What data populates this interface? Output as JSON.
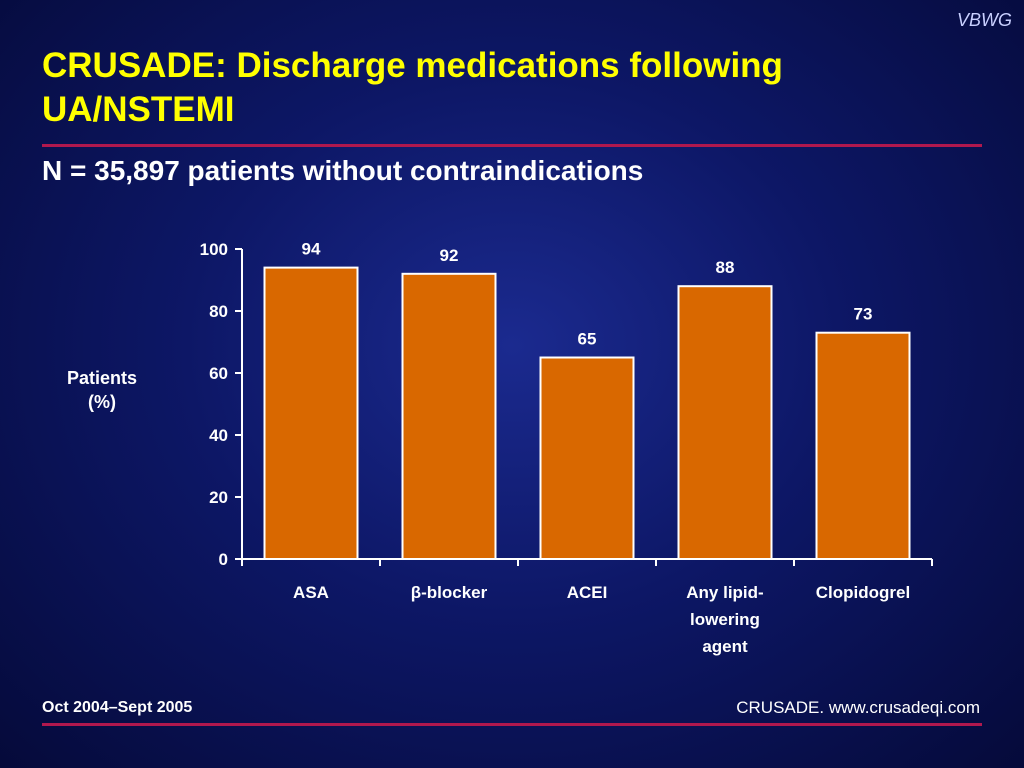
{
  "brand": "VBWG",
  "title": "CRUSADE: Discharge medications following UA/NSTEMI",
  "subtitle": "N = 35,897 patients without contraindications",
  "footer": {
    "left": "Oct 2004–Sept 2005",
    "right": "CRUSADE. www.crusadeqi.com"
  },
  "colors": {
    "bar": "#d96800",
    "background": "#0d1766",
    "title": "#ffff00",
    "rule": "#b0184e"
  },
  "chart_data": {
    "type": "bar",
    "categories": [
      "ASA",
      "β-blocker",
      "ACEI",
      "Any lipid-\nlowering\nagent",
      "Clopidogrel"
    ],
    "values": [
      94,
      92,
      65,
      88,
      73
    ],
    "data_labels": [
      "94",
      "92",
      "65",
      "88",
      "73"
    ],
    "ylabel": "Patients\n(%)",
    "xlabel": "",
    "ylim": [
      0,
      100
    ],
    "yticks": [
      0,
      20,
      40,
      60,
      80,
      100
    ],
    "grid": false,
    "legend": "none"
  }
}
